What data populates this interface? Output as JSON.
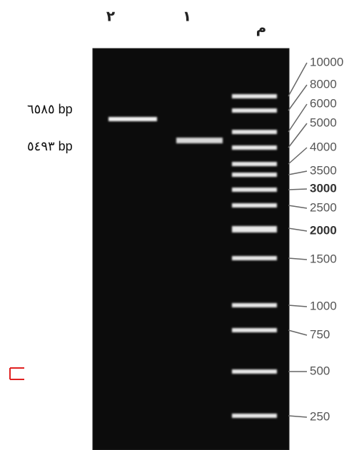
{
  "lanes": [
    "٢",
    "١",
    "م"
  ],
  "band_labels": [
    "٦٥٨٥ bp",
    "٥٤٩٣ bp"
  ],
  "ladder": {
    "labels": [
      "10000",
      "8000",
      "6000",
      "5000",
      "4000",
      "3500",
      "3000",
      "2500",
      "2000",
      "1500",
      "1000",
      "750",
      "500",
      "250"
    ]
  }
}
